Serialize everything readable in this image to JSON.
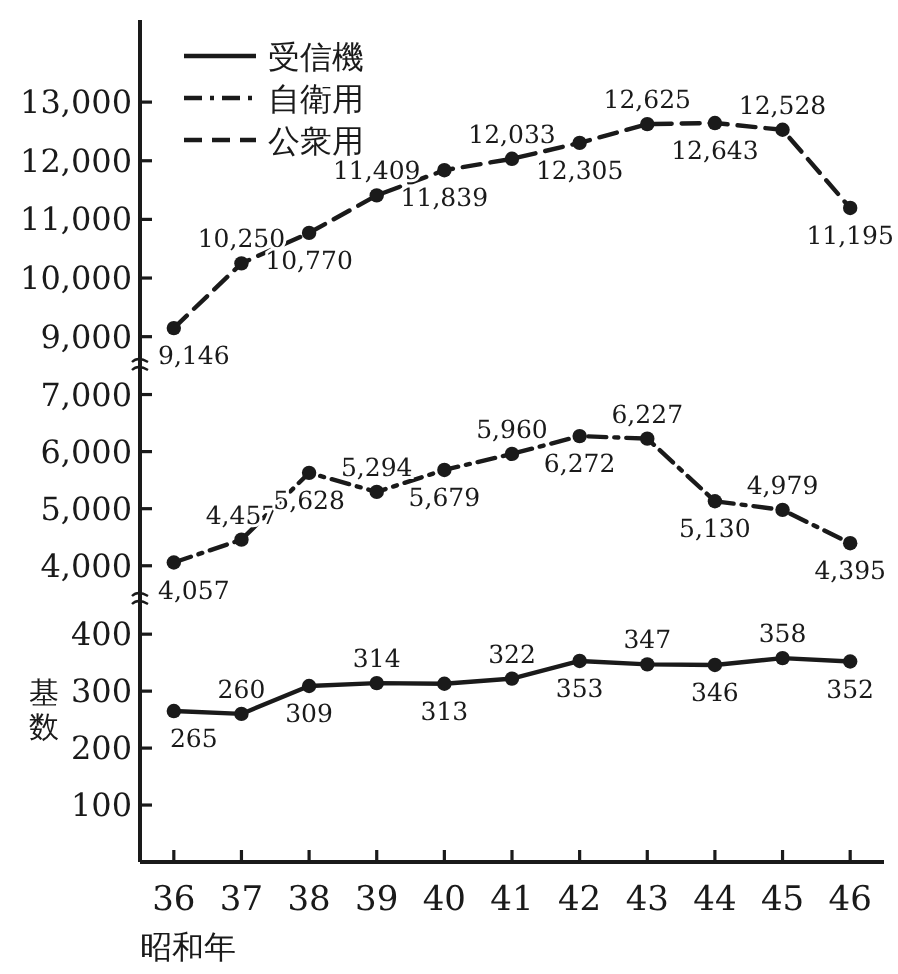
{
  "chart_data": [
    {
      "type": "line",
      "categories": [
        null,
        null,
        null,
        null,
        null,
        null,
        null,
        null,
        null,
        null,
        null
      ],
      "ylim": [
        8500,
        14400
      ],
      "yticks": [
        {
          "value": 9000,
          "label": "9,000"
        },
        {
          "value": 10000,
          "label": "10,000"
        },
        {
          "value": 11000,
          "label": "11,000"
        },
        {
          "value": 12000,
          "label": "12,000"
        },
        {
          "value": 13000,
          "label": "13,000"
        }
      ],
      "tick_labels": "y",
      "legend": "top left",
      "marker": "circle",
      "series": [
        {
          "name": "公衆用",
          "color": "#1a1a1a",
          "line_style": "dashed",
          "values": [
            9146,
            10250,
            10770,
            11409,
            11839,
            12033,
            12305,
            12625,
            12643,
            12528,
            11195
          ],
          "value_labels": [
            "9,146",
            "10,250",
            "10,770",
            "11,409",
            "11,839",
            "12,033",
            "12,305",
            "12,625",
            "12,643",
            "12,528",
            "11,195"
          ]
        }
      ]
    },
    {
      "type": "line",
      "categories": [
        null,
        null,
        null,
        null,
        null,
        null,
        null,
        null,
        null,
        null,
        null
      ],
      "ylim": [
        3400,
        7500
      ],
      "yticks": [
        {
          "value": 4000,
          "label": "4,000"
        },
        {
          "value": 5000,
          "label": "5,000"
        },
        {
          "value": 6000,
          "label": "6,000"
        },
        {
          "value": 7000,
          "label": "7,000"
        }
      ],
      "tick_labels": "y",
      "marker": "circle",
      "series": [
        {
          "name": "自衛用",
          "color": "#1a1a1a",
          "line_style": "dashdot",
          "values": [
            4057,
            4457,
            5628,
            5294,
            5679,
            5960,
            6272,
            6227,
            5130,
            4979,
            4395
          ],
          "value_labels": [
            "4,057",
            "4,457",
            "5,628",
            "5,294",
            "5,679",
            "5,960",
            "6,272",
            "6,227",
            "5,130",
            "4,979",
            "4,395"
          ]
        }
      ]
    },
    {
      "type": "line",
      "categories": [
        "36",
        "37",
        "38",
        "39",
        "40",
        "41",
        "42",
        "43",
        "44",
        "45",
        "46"
      ],
      "ylim": [
        0,
        460
      ],
      "yticks": [
        100,
        200,
        300,
        400
      ],
      "xlabel": "昭和年",
      "ylabel": "基数",
      "marker": "circle",
      "data_labels": true,
      "series": [
        {
          "name": "受信機",
          "color": "#1a1a1a",
          "line_style": "solid",
          "values": [
            265,
            260,
            309,
            314,
            313,
            322,
            353,
            347,
            346,
            358,
            352
          ]
        }
      ]
    }
  ]
}
